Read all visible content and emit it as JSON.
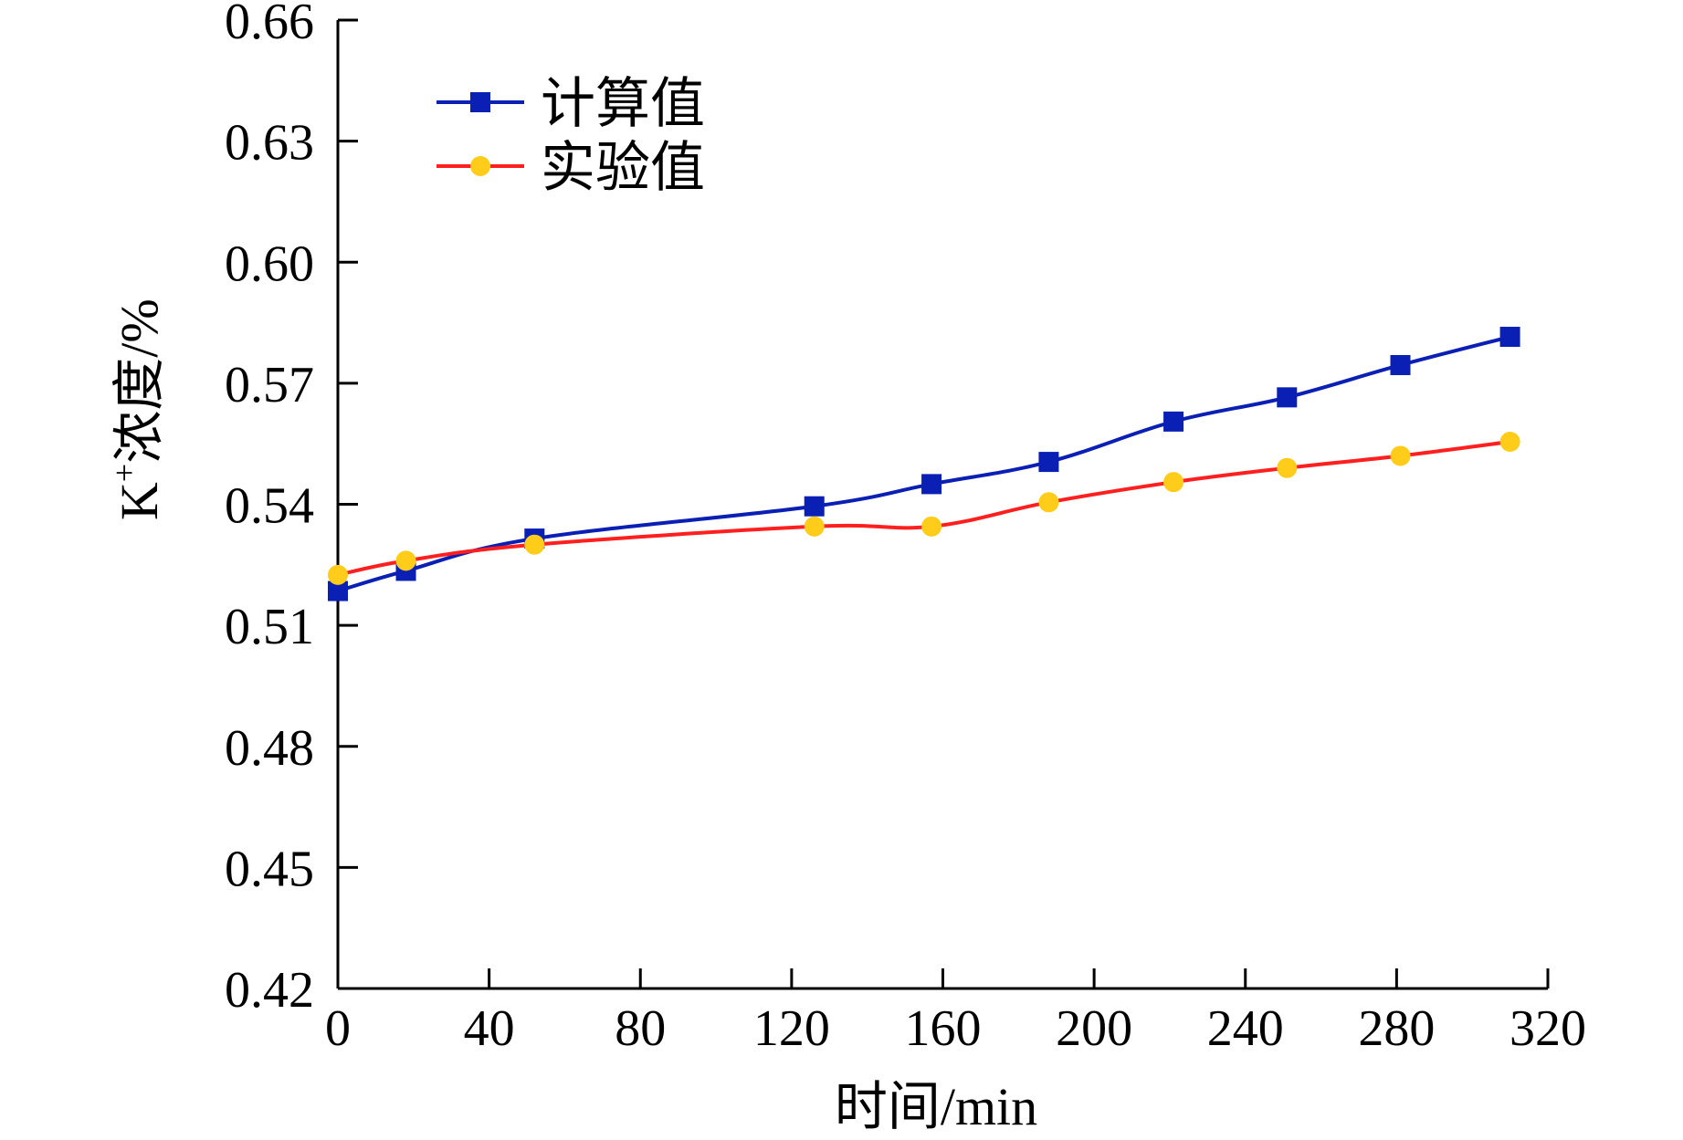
{
  "chart_data": {
    "type": "line",
    "title": "",
    "xlabel": "时间/min",
    "ylabel_main": "K",
    "ylabel_superscript": "+",
    "ylabel_rest": "浓度/%",
    "xlim": [
      0,
      320
    ],
    "ylim": [
      0.42,
      0.66
    ],
    "xticks": [
      0,
      40,
      80,
      120,
      160,
      200,
      240,
      280,
      320
    ],
    "xtick_labels": [
      "0",
      "40",
      "80",
      "120",
      "160",
      "200",
      "240",
      "280",
      "320"
    ],
    "yticks": [
      0.42,
      0.45,
      0.48,
      0.51,
      0.54,
      0.57,
      0.6,
      0.63,
      0.66
    ],
    "ytick_labels": [
      "0.42",
      "0.45",
      "0.48",
      "0.51",
      "0.54",
      "0.57",
      "0.60",
      "0.63",
      "0.66"
    ],
    "grid": false,
    "legend_position": "top-left",
    "series": [
      {
        "name": "计算值",
        "color": "#0a1fb4",
        "marker": "square",
        "x": [
          0,
          18,
          52,
          126,
          157,
          188,
          221,
          251,
          281,
          310
        ],
        "y": [
          0.5185,
          0.5235,
          0.5315,
          0.5395,
          0.545,
          0.5505,
          0.5605,
          0.5665,
          0.5745,
          0.5815
        ]
      },
      {
        "name": "实验值",
        "color": "#ff1f1f",
        "marker_color": "#ffcc19",
        "marker": "circle",
        "x": [
          0,
          18,
          52,
          126,
          157,
          188,
          221,
          251,
          281,
          310
        ],
        "y": [
          0.5225,
          0.526,
          0.53,
          0.5345,
          0.5345,
          0.5405,
          0.5455,
          0.549,
          0.552,
          0.5555
        ]
      }
    ]
  }
}
